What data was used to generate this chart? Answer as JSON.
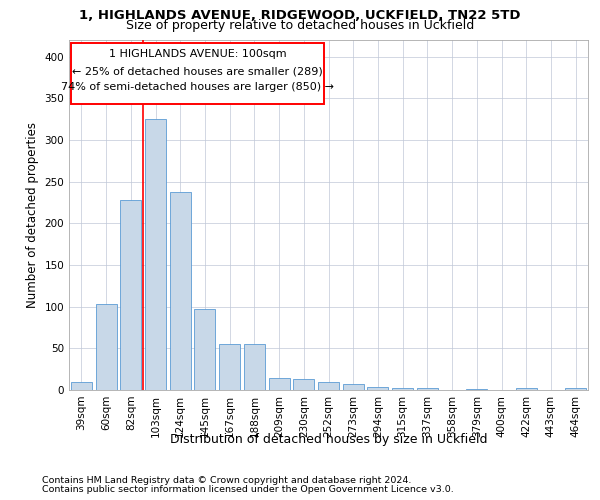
{
  "title1": "1, HIGHLANDS AVENUE, RIDGEWOOD, UCKFIELD, TN22 5TD",
  "title2": "Size of property relative to detached houses in Uckfield",
  "xlabel": "Distribution of detached houses by size in Uckfield",
  "ylabel": "Number of detached properties",
  "footnote1": "Contains HM Land Registry data © Crown copyright and database right 2024.",
  "footnote2": "Contains public sector information licensed under the Open Government Licence v3.0.",
  "annotation_line1": "1 HIGHLANDS AVENUE: 100sqm",
  "annotation_line2": "← 25% of detached houses are smaller (289)",
  "annotation_line3": "74% of semi-detached houses are larger (850) →",
  "bar_labels": [
    "39sqm",
    "60sqm",
    "82sqm",
    "103sqm",
    "124sqm",
    "145sqm",
    "167sqm",
    "188sqm",
    "209sqm",
    "230sqm",
    "252sqm",
    "273sqm",
    "294sqm",
    "315sqm",
    "337sqm",
    "358sqm",
    "379sqm",
    "400sqm",
    "422sqm",
    "443sqm",
    "464sqm"
  ],
  "bar_values": [
    10,
    103,
    228,
    325,
    238,
    97,
    55,
    55,
    15,
    13,
    10,
    7,
    4,
    2,
    3,
    0,
    1,
    0,
    2,
    0,
    3
  ],
  "bar_color": "#c8d8e8",
  "bar_edge_color": "#5b9bd5",
  "ylim": [
    0,
    420
  ],
  "yticks": [
    0,
    50,
    100,
    150,
    200,
    250,
    300,
    350,
    400
  ],
  "background_color": "#ffffff",
  "grid_color": "#c0c8d8",
  "title1_fontsize": 9.5,
  "title2_fontsize": 9,
  "xlabel_fontsize": 9,
  "ylabel_fontsize": 8.5,
  "tick_fontsize": 7.5,
  "annotation_fontsize": 8,
  "footnote_fontsize": 6.8
}
